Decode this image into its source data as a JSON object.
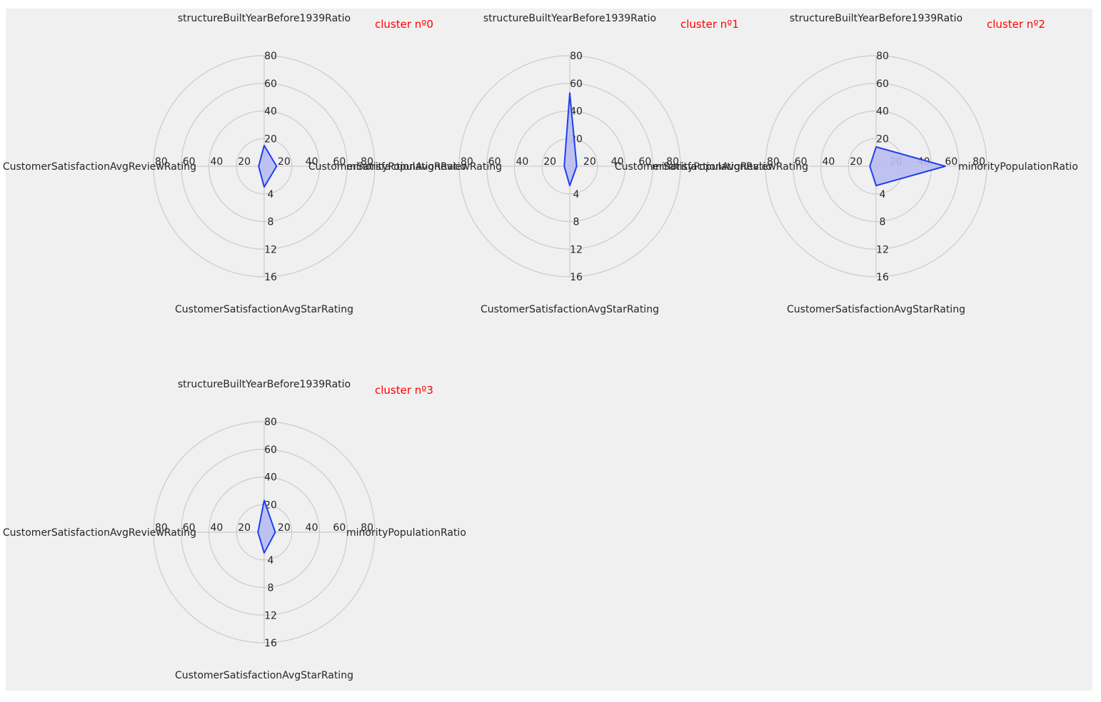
{
  "figure": {
    "background": "#f0f0f0",
    "grid_color": "#cbcbcb",
    "series_color": "#1f3ff0",
    "fill_color": "#b9bcef",
    "title_color": "#ff0000"
  },
  "chart_data": [
    {
      "type": "radar",
      "title": "cluster nº0",
      "axes": [
        {
          "label": "structureBuiltYearBefore1939Ratio",
          "direction": "top",
          "ticks": [
            "20",
            "40",
            "60",
            "80"
          ],
          "range": [
            0,
            80
          ]
        },
        {
          "label": "CustomerSatisfactionAvgReviewRating",
          "direction": "left",
          "ticks": [
            "20",
            "40",
            "60",
            "80"
          ],
          "range": [
            0,
            80
          ]
        },
        {
          "label": "CustomerSatisfactionAvgStarRating",
          "direction": "bottom",
          "ticks": [
            "4",
            "8",
            "12",
            "16"
          ],
          "range": [
            0,
            16
          ]
        },
        {
          "label": "minorityPopulationRatio",
          "direction": "right",
          "ticks": [
            "20",
            "40",
            "60",
            "80"
          ],
          "range": [
            0,
            80
          ]
        }
      ],
      "values": [
        15,
        4,
        3,
        9
      ]
    },
    {
      "type": "radar",
      "title": "cluster nº1",
      "axes": [
        {
          "label": "structureBuiltYearBefore1939Ratio",
          "direction": "top",
          "ticks": [
            "20",
            "40",
            "60",
            "80"
          ],
          "range": [
            0,
            80
          ]
        },
        {
          "label": "CustomerSatisfactionAvgReviewRating",
          "direction": "left",
          "ticks": [
            "20",
            "40",
            "60",
            "80"
          ],
          "range": [
            0,
            80
          ]
        },
        {
          "label": "CustomerSatisfactionAvgStarRating",
          "direction": "bottom",
          "ticks": [
            "4",
            "8",
            "12",
            "16"
          ],
          "range": [
            0,
            16
          ]
        },
        {
          "label": "minorityPopulationRatio",
          "direction": "right",
          "ticks": [
            "20",
            "40",
            "60",
            "80"
          ],
          "range": [
            0,
            80
          ]
        }
      ],
      "values": [
        53,
        4,
        2.8,
        5
      ]
    },
    {
      "type": "radar",
      "title": "cluster nº2",
      "axes": [
        {
          "label": "structureBuiltYearBefore1939Ratio",
          "direction": "top",
          "ticks": [
            "20",
            "40",
            "60",
            "80"
          ],
          "range": [
            0,
            80
          ]
        },
        {
          "label": "CustomerSatisfactionAvgReviewRating",
          "direction": "left",
          "ticks": [
            "20",
            "40",
            "60",
            "80"
          ],
          "range": [
            0,
            80
          ]
        },
        {
          "label": "CustomerSatisfactionAvgStarRating",
          "direction": "bottom",
          "ticks": [
            "4",
            "8",
            "12",
            "16"
          ],
          "range": [
            0,
            16
          ]
        },
        {
          "label": "minorityPopulationRatio",
          "direction": "right",
          "ticks": [
            "20",
            "40",
            "60",
            "80"
          ],
          "range": [
            0,
            80
          ]
        }
      ],
      "values": [
        14,
        4.5,
        2.8,
        50
      ]
    },
    {
      "type": "radar",
      "title": "cluster nº3",
      "axes": [
        {
          "label": "structureBuiltYearBefore1939Ratio",
          "direction": "top",
          "ticks": [
            "20",
            "40",
            "60",
            "80"
          ],
          "range": [
            0,
            80
          ]
        },
        {
          "label": "CustomerSatisfactionAvgReviewRating",
          "direction": "left",
          "ticks": [
            "20",
            "40",
            "60",
            "80"
          ],
          "range": [
            0,
            80
          ]
        },
        {
          "label": "CustomerSatisfactionAvgStarRating",
          "direction": "bottom",
          "ticks": [
            "4",
            "8",
            "12",
            "16"
          ],
          "range": [
            0,
            16
          ]
        },
        {
          "label": "minorityPopulationRatio",
          "direction": "right",
          "ticks": [
            "20",
            "40",
            "60",
            "80"
          ],
          "range": [
            0,
            80
          ]
        }
      ],
      "values": [
        23,
        4.5,
        3,
        8
      ]
    }
  ]
}
